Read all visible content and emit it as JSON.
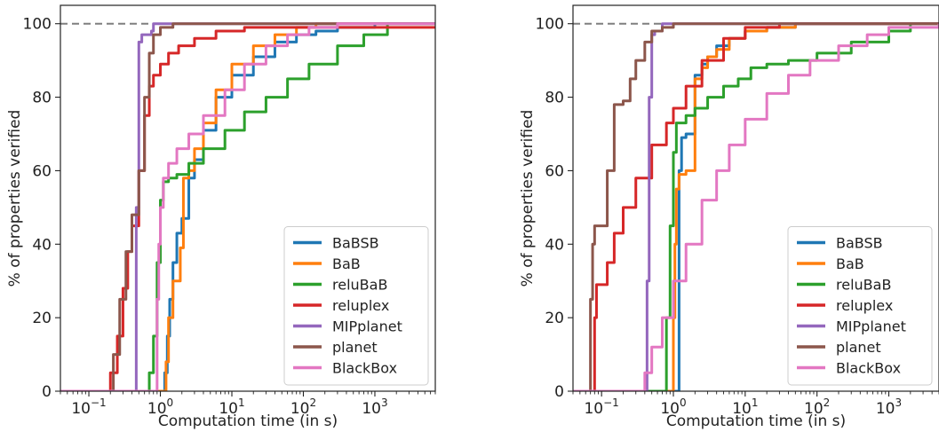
{
  "chart_data": [
    {
      "type": "line",
      "xlabel": "Computation time (in s)",
      "ylabel": "% of properties verified",
      "xscale": "log",
      "xlim": [
        0.04,
        7000
      ],
      "ylim": [
        0,
        105
      ],
      "xticks": [
        0.1,
        1,
        10,
        100,
        1000
      ],
      "yticks": [
        0,
        20,
        40,
        60,
        80,
        100
      ],
      "reference_line": 100,
      "legend_position": "lower-right",
      "series": [
        {
          "name": "BaBSB",
          "color": "#1f77b4",
          "x": [
            0.04,
            1.05,
            1.15,
            1.25,
            1.35,
            1.5,
            1.7,
            2.0,
            2.5,
            3.0,
            4.0,
            6.0,
            10,
            20,
            40,
            80,
            150,
            300,
            1000,
            7000
          ],
          "y": [
            0,
            0,
            5,
            15,
            25,
            35,
            43,
            47,
            58,
            63,
            71,
            80,
            86,
            91,
            95,
            97,
            98,
            99,
            100,
            100
          ]
        },
        {
          "name": "BaB",
          "color": "#ff7f0e",
          "x": [
            0.04,
            1.1,
            1.2,
            1.3,
            1.5,
            1.9,
            2.1,
            2.5,
            3.0,
            4.0,
            6.0,
            10,
            20,
            40,
            80,
            150,
            300,
            1000,
            7000
          ],
          "y": [
            0,
            0,
            8,
            20,
            30,
            39,
            58,
            60,
            66,
            73,
            82,
            89,
            94,
            97,
            99,
            100,
            100,
            100,
            100
          ]
        },
        {
          "name": "reluBaB",
          "color": "#2ca02c",
          "x": [
            0.04,
            0.6,
            0.7,
            0.8,
            0.9,
            1.0,
            1.1,
            1.3,
            1.7,
            2.5,
            4.0,
            8.0,
            15,
            30,
            60,
            120,
            300,
            700,
            1500,
            7000
          ],
          "y": [
            0,
            0,
            5,
            15,
            35,
            52,
            57,
            58,
            59,
            62,
            66,
            71,
            76,
            80,
            85,
            89,
            94,
            97,
            100,
            100
          ]
        },
        {
          "name": "reluplex",
          "color": "#d62728",
          "x": [
            0.04,
            0.16,
            0.2,
            0.25,
            0.3,
            0.35,
            0.4,
            0.5,
            0.6,
            0.7,
            0.8,
            1.0,
            1.3,
            1.8,
            3.0,
            6.0,
            15,
            50,
            7000
          ],
          "y": [
            0,
            0,
            5,
            15,
            28,
            38,
            45,
            60,
            75,
            83,
            86,
            89,
            92,
            94,
            96,
            98,
            99,
            99,
            99
          ]
        },
        {
          "name": "MIPplanet",
          "color": "#9467bd",
          "x": [
            0.04,
            0.42,
            0.46,
            0.5,
            0.55,
            0.7,
            0.75,
            0.8,
            1.0,
            10,
            7000
          ],
          "y": [
            0,
            0,
            50,
            95,
            97,
            97,
            98,
            100,
            100,
            100,
            100
          ]
        },
        {
          "name": "planet",
          "color": "#8c564b",
          "x": [
            0.04,
            0.18,
            0.22,
            0.27,
            0.33,
            0.4,
            0.5,
            0.6,
            0.7,
            0.8,
            1.0,
            1.5,
            3.0,
            7000
          ],
          "y": [
            0,
            0,
            10,
            25,
            38,
            48,
            60,
            80,
            92,
            97,
            99,
            100,
            100,
            100
          ]
        },
        {
          "name": "BlackBox",
          "color": "#e377c2",
          "x": [
            0.04,
            0.85,
            0.9,
            0.95,
            1.0,
            1.1,
            1.3,
            1.7,
            2.5,
            4.0,
            8.0,
            15,
            30,
            60,
            120,
            300,
            1000,
            7000
          ],
          "y": [
            0,
            0,
            25,
            40,
            50,
            58,
            62,
            66,
            70,
            75,
            82,
            89,
            94,
            97,
            99,
            100,
            100,
            100
          ]
        }
      ]
    },
    {
      "type": "line",
      "xlabel": "Computation time (in s)",
      "ylabel": "% of properties verified",
      "xscale": "log",
      "xlim": [
        0.04,
        5000
      ],
      "ylim": [
        0,
        105
      ],
      "xticks": [
        0.1,
        1,
        10,
        100,
        1000
      ],
      "yticks": [
        0,
        20,
        40,
        60,
        80,
        100
      ],
      "reference_line": 100,
      "legend_position": "lower-right",
      "series": [
        {
          "name": "BaBSB",
          "color": "#1f77b4",
          "x": [
            0.04,
            1.1,
            1.2,
            1.3,
            1.5,
            1.8,
            2.0,
            2.5,
            3.0,
            4.0,
            6.0,
            10,
            20,
            50,
            100,
            200,
            5000
          ],
          "y": [
            0,
            0,
            60,
            69,
            70,
            70,
            86,
            89,
            91,
            94,
            96,
            98,
            99,
            100,
            100,
            100,
            100
          ]
        },
        {
          "name": "BaB",
          "color": "#ff7f0e",
          "x": [
            0.04,
            0.95,
            1.0,
            1.05,
            1.1,
            1.2,
            1.5,
            1.8,
            2.0,
            2.5,
            3.0,
            4.0,
            6.0,
            10,
            20,
            50,
            200,
            5000
          ],
          "y": [
            0,
            0,
            20,
            40,
            55,
            59,
            60,
            60,
            85,
            88,
            91,
            93,
            96,
            98,
            99,
            100,
            100,
            100
          ]
        },
        {
          "name": "reluBaB",
          "color": "#2ca02c",
          "x": [
            0.04,
            0.7,
            0.8,
            0.9,
            1.0,
            1.1,
            1.5,
            2.0,
            3.0,
            5.0,
            8.0,
            12,
            20,
            40,
            100,
            300,
            1000,
            2000,
            5000
          ],
          "y": [
            0,
            0,
            20,
            45,
            65,
            73,
            75,
            77,
            80,
            83,
            85,
            88,
            89,
            90,
            92,
            95,
            98,
            100,
            100
          ]
        },
        {
          "name": "reluplex",
          "color": "#d62728",
          "x": [
            0.04,
            0.075,
            0.08,
            0.085,
            0.1,
            0.12,
            0.15,
            0.2,
            0.3,
            0.5,
            0.8,
            1.0,
            1.5,
            2.5,
            5.0,
            10,
            30,
            5000
          ],
          "y": [
            0,
            0,
            20,
            29,
            29,
            35,
            43,
            50,
            58,
            67,
            73,
            77,
            83,
            90,
            96,
            99,
            100,
            100
          ]
        },
        {
          "name": "MIPplanet",
          "color": "#9467bd",
          "x": [
            0.04,
            0.4,
            0.43,
            0.46,
            0.5,
            0.55,
            0.65,
            0.7,
            1.0,
            10,
            5000
          ],
          "y": [
            0,
            0,
            30,
            80,
            97,
            98,
            98,
            100,
            100,
            100,
            100
          ]
        },
        {
          "name": "planet",
          "color": "#8c564b",
          "x": [
            0.04,
            0.065,
            0.07,
            0.075,
            0.08,
            0.1,
            0.12,
            0.15,
            0.2,
            0.25,
            0.3,
            0.4,
            0.5,
            0.7,
            1.0,
            2.0,
            5000
          ],
          "y": [
            0,
            0,
            25,
            40,
            45,
            45,
            60,
            78,
            79,
            85,
            90,
            95,
            98,
            99,
            100,
            100,
            100
          ]
        },
        {
          "name": "BlackBox",
          "color": "#e377c2",
          "x": [
            0.04,
            0.35,
            0.4,
            0.5,
            0.7,
            1.0,
            1.5,
            2.5,
            4.0,
            6.0,
            10,
            20,
            40,
            80,
            200,
            500,
            1000,
            5000
          ],
          "y": [
            0,
            0,
            5,
            12,
            20,
            30,
            40,
            52,
            60,
            67,
            74,
            81,
            86,
            90,
            94,
            97,
            99,
            100
          ]
        }
      ]
    }
  ]
}
